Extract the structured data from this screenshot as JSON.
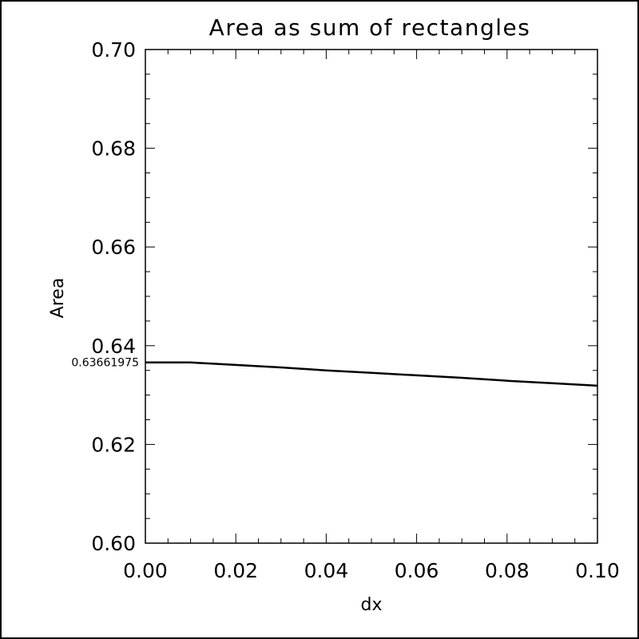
{
  "chart_data": {
    "type": "line",
    "title": "Area as sum of rectangles",
    "xlabel": "dx",
    "ylabel": "Area",
    "xlim": [
      0.0,
      0.1
    ],
    "ylim": [
      0.6,
      0.7
    ],
    "x_major_ticks": [
      0.0,
      0.02,
      0.04,
      0.06,
      0.08,
      0.1
    ],
    "x_tick_labels": [
      "0.00",
      "0.02",
      "0.04",
      "0.06",
      "0.08",
      "0.10"
    ],
    "y_major_ticks": [
      0.6,
      0.62,
      0.64,
      0.66,
      0.68,
      0.7
    ],
    "y_tick_labels": [
      "0.60",
      "0.62",
      "0.64",
      "0.66",
      "0.68",
      "0.70"
    ],
    "grid": false,
    "series": [
      {
        "x": [
          0.0001,
          0.01,
          0.02,
          0.03,
          0.04,
          0.05,
          0.06,
          0.07,
          0.08,
          0.09,
          0.1
        ],
        "y": [
          0.6366,
          0.6366,
          0.6361,
          0.6356,
          0.635,
          0.6345,
          0.634,
          0.6335,
          0.6329,
          0.6324,
          0.6319
        ],
        "color": "#000000"
      }
    ],
    "annotations": [
      {
        "text": "0.63661975",
        "y": 0.63661975,
        "placement": "left-of-y-axis"
      }
    ]
  }
}
